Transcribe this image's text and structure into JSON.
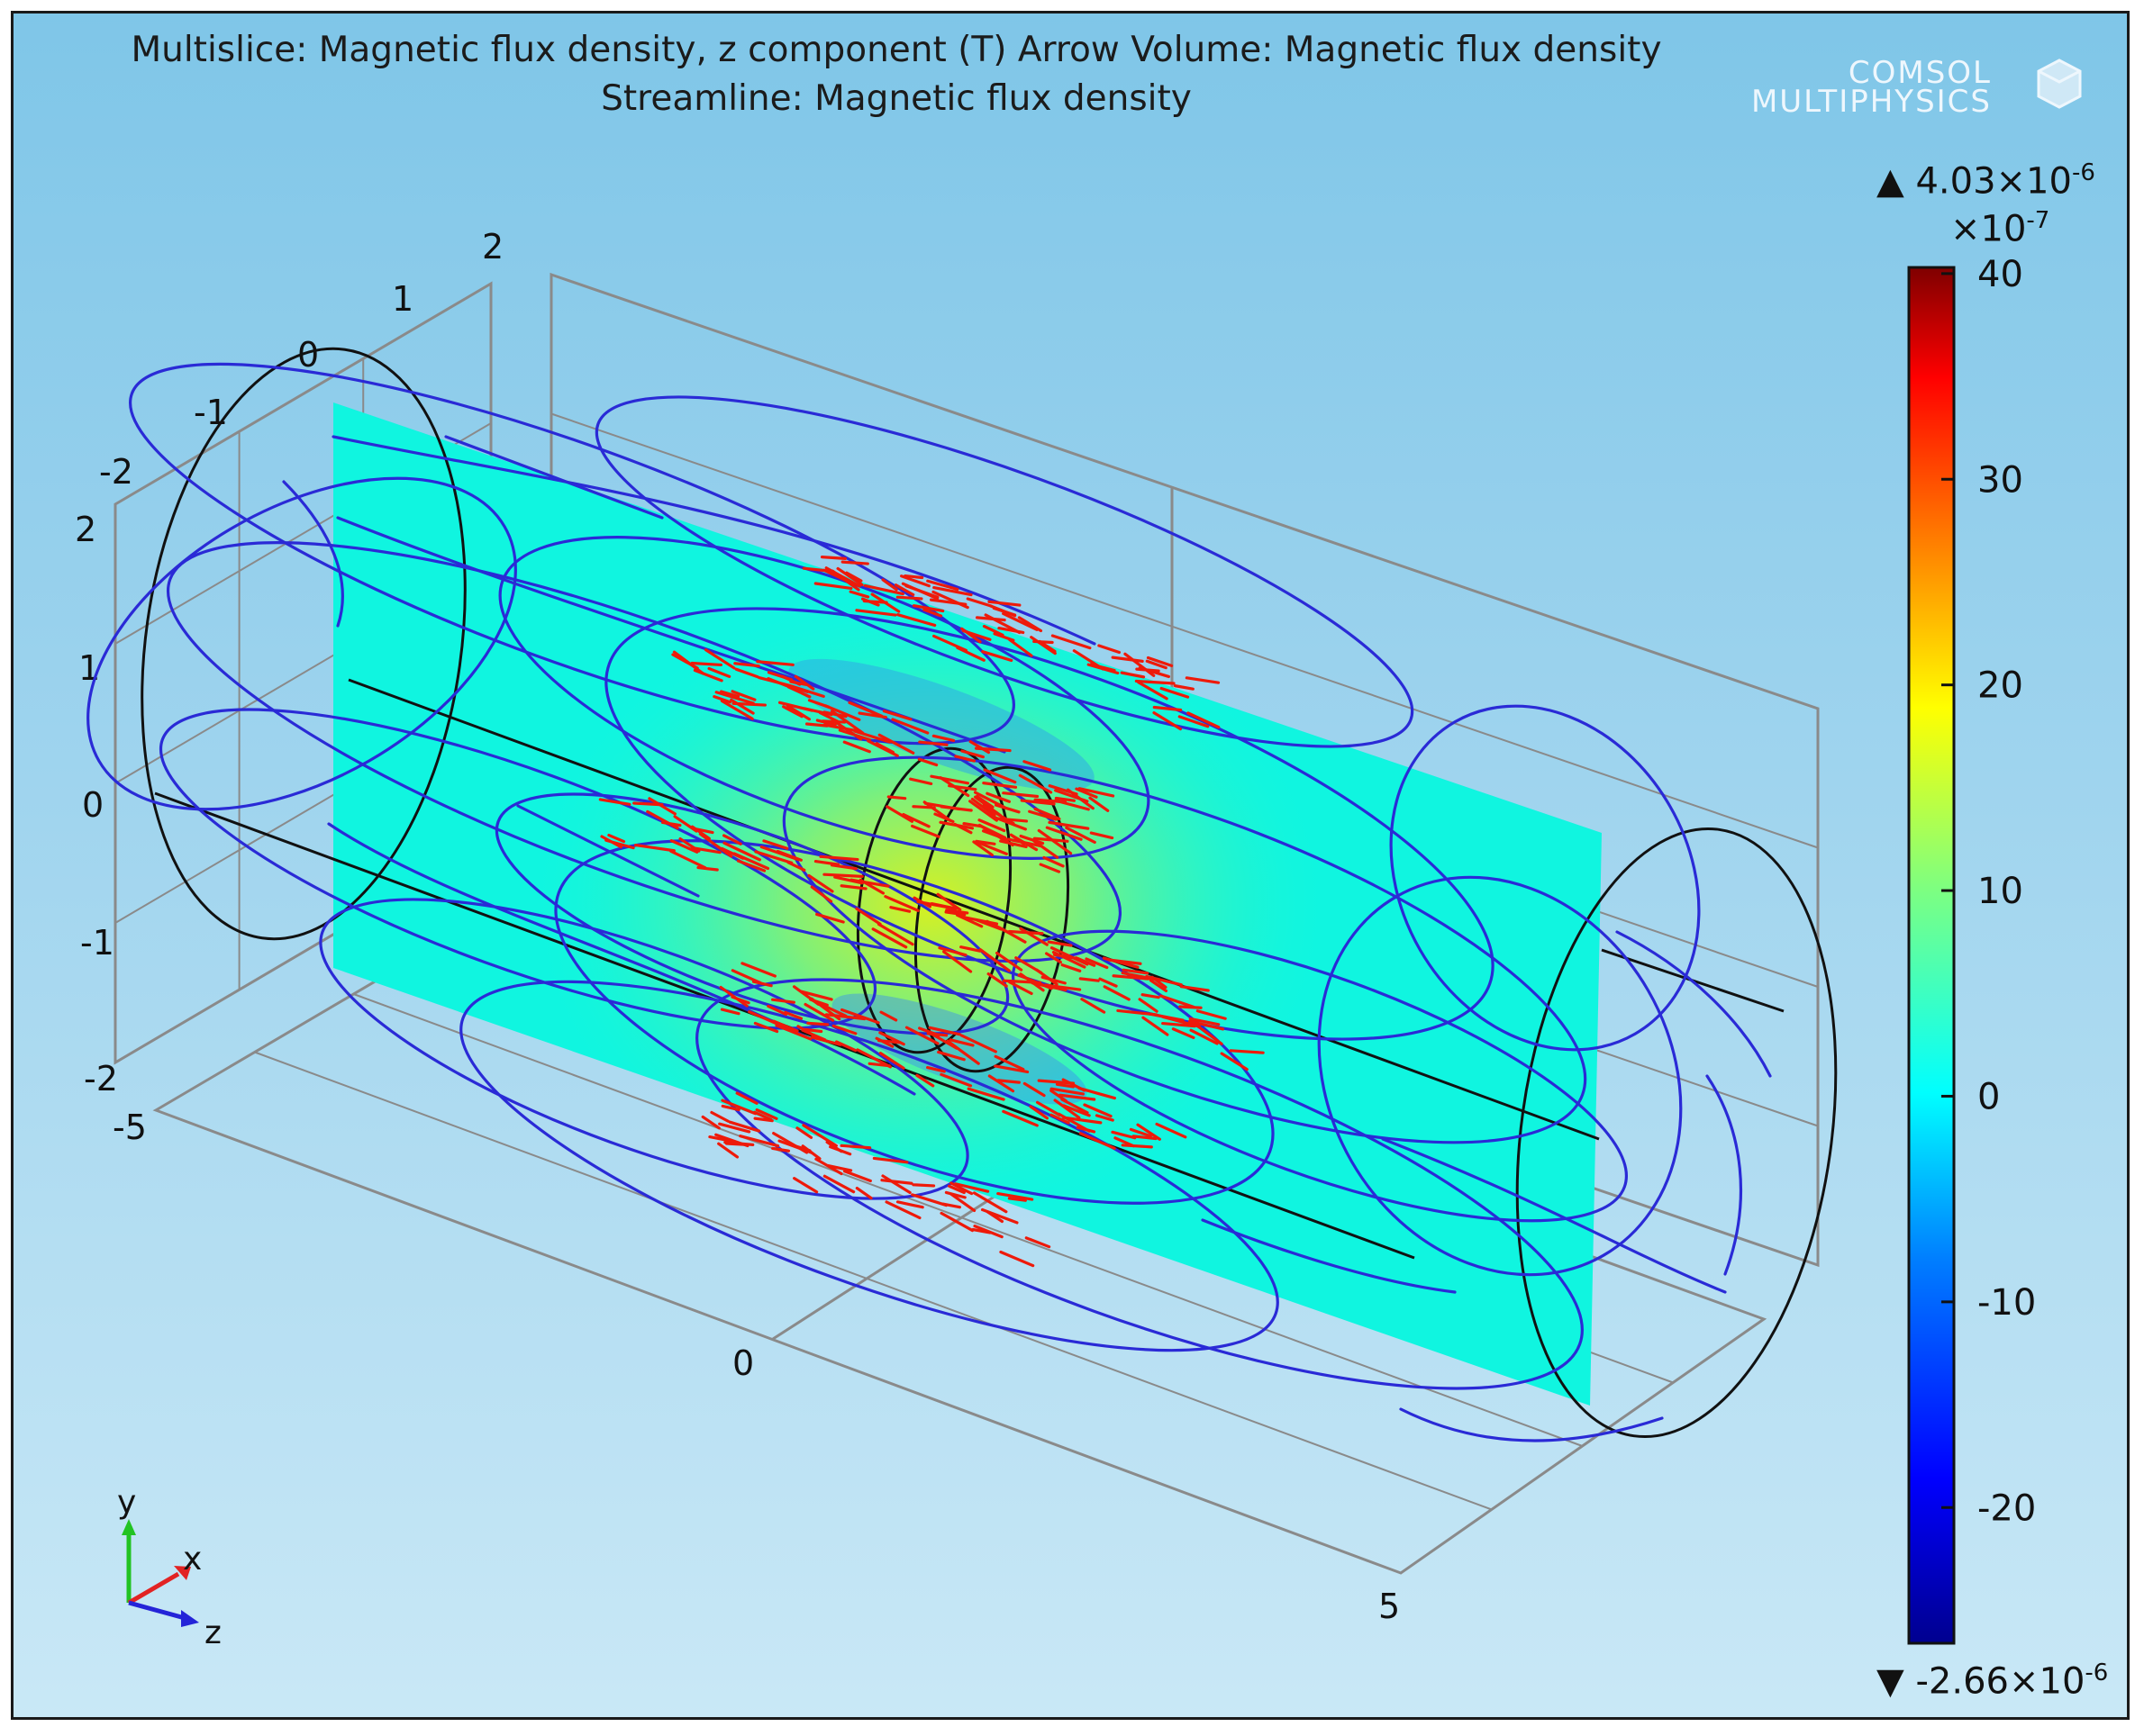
{
  "window": {
    "title_line1": "Multislice: Magnetic flux density, z component (T)  Arrow Volume: Magnetic flux density",
    "title_line2": "Streamline: Magnetic flux density",
    "logo_line1": "COMSOL",
    "logo_line2": "MULTIPHYSICS"
  },
  "chart_data": {
    "type": "heatmap",
    "title": "Multislice: Magnetic flux density, z component (T)  Arrow Volume: Magnetic flux density",
    "subtitle": "Streamline: Magnetic flux density",
    "layers": [
      "Multislice",
      "Arrow Volume",
      "Streamline"
    ],
    "x_ticks": [
      "-2",
      "-1",
      "0",
      "1",
      "2"
    ],
    "y_ticks": [
      "2",
      "1",
      "0",
      "-1",
      "-2"
    ],
    "z_ticks": [
      "-5",
      "0",
      "5"
    ],
    "xlim": [
      -2,
      2
    ],
    "ylim": [
      -2,
      2
    ],
    "zlim": [
      -5,
      5
    ],
    "grid": true,
    "axis_triad": {
      "y": "y",
      "x": "x",
      "z": "z"
    },
    "colorbar": {
      "max_label": "▲ 4.03×10",
      "max_exp": "-6",
      "min_label": "▼ -2.66×10",
      "min_exp": "-6",
      "multiplier": "×10",
      "multiplier_exp": "-7",
      "range": [
        -26.6,
        40.3
      ],
      "ticks": [
        "40",
        "30",
        "20",
        "10",
        "0",
        "-10",
        "-20"
      ],
      "tick_values": [
        40,
        30,
        20,
        10,
        0,
        -10,
        -20
      ],
      "colormap": "rainbow",
      "placement": "right"
    },
    "colors": {
      "streamline": "#2a2ad6",
      "arrows": "#ee1a0a",
      "slice_background": "#10f5e0",
      "box_lines": "#8a8a8a"
    }
  }
}
